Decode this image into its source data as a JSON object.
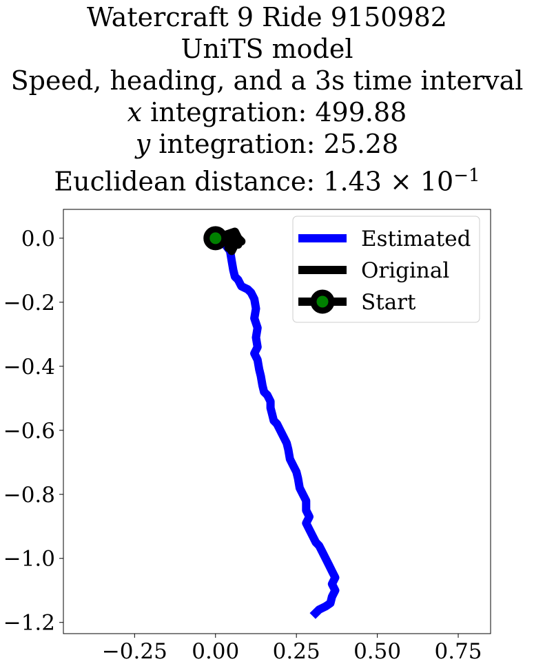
{
  "chart_data": {
    "type": "line",
    "title_lines": {
      "line1": "Watercraft 9 Ride 9150982",
      "line2": "UniTS model",
      "line3": "Speed, heading, and a 3s time interval",
      "line4_var": "x",
      "line4_rest": " integration: 499.88",
      "line5_var": "y",
      "line5_rest": " integration: 25.28",
      "line6_text": "Euclidean distance: 1.43 × 10",
      "line6_exp": "−1"
    },
    "xlim": [
      -0.47,
      0.85
    ],
    "ylim": [
      -1.235,
      0.09
    ],
    "xticks": [
      -0.25,
      0.0,
      0.25,
      0.5,
      0.75
    ],
    "xtick_labels": [
      "−0.25",
      "0.00",
      "0.25",
      "0.50",
      "0.75"
    ],
    "yticks": [
      0.0,
      -0.2,
      -0.4,
      -0.6,
      -0.8,
      -1.0,
      -1.2
    ],
    "ytick_labels": [
      "0.0",
      "−0.2",
      "−0.4",
      "−0.6",
      "−0.8",
      "−1.0",
      "−1.2"
    ],
    "grid": false,
    "legend_position": "top-right",
    "series": [
      {
        "name": "Estimated",
        "color": "#0000ff",
        "x": [
          0.0,
          0.03,
          0.045,
          0.05,
          0.055,
          0.06,
          0.07,
          0.08,
          0.1,
          0.11,
          0.12,
          0.125,
          0.12,
          0.13,
          0.125,
          0.13,
          0.12,
          0.13,
          0.135,
          0.14,
          0.145,
          0.15,
          0.16,
          0.17,
          0.17,
          0.175,
          0.18,
          0.19,
          0.2,
          0.21,
          0.22,
          0.225,
          0.23,
          0.24,
          0.25,
          0.255,
          0.26,
          0.27,
          0.28,
          0.28,
          0.29,
          0.28,
          0.29,
          0.3,
          0.31,
          0.32,
          0.33,
          0.34,
          0.35,
          0.36,
          0.37,
          0.36,
          0.37,
          0.36,
          0.355,
          0.34,
          0.32,
          0.3
        ],
        "y": [
          0.0,
          -0.02,
          -0.04,
          -0.07,
          -0.1,
          -0.12,
          -0.13,
          -0.15,
          -0.16,
          -0.17,
          -0.19,
          -0.22,
          -0.25,
          -0.28,
          -0.31,
          -0.34,
          -0.36,
          -0.38,
          -0.41,
          -0.43,
          -0.46,
          -0.48,
          -0.49,
          -0.51,
          -0.53,
          -0.55,
          -0.57,
          -0.58,
          -0.6,
          -0.62,
          -0.64,
          -0.66,
          -0.69,
          -0.71,
          -0.73,
          -0.75,
          -0.78,
          -0.8,
          -0.82,
          -0.85,
          -0.87,
          -0.89,
          -0.91,
          -0.93,
          -0.95,
          -0.96,
          -0.98,
          -1.0,
          -1.02,
          -1.04,
          -1.06,
          -1.08,
          -1.1,
          -1.12,
          -1.14,
          -1.15,
          -1.16,
          -1.18
        ]
      },
      {
        "name": "Original",
        "color": "#000000",
        "x": [
          0.0,
          0.03,
          0.06,
          0.07,
          0.06,
          0.04,
          0.05,
          0.07,
          0.08,
          0.06,
          0.05,
          0.04,
          0.06,
          0.05,
          0.04,
          0.07,
          0.06,
          0.05
        ],
        "y": [
          0.0,
          0.01,
          0.02,
          0.0,
          -0.02,
          -0.03,
          -0.01,
          0.0,
          -0.01,
          -0.02,
          -0.04,
          -0.02,
          0.01,
          -0.03,
          -0.01,
          -0.02,
          0.02,
          -0.04
        ]
      }
    ],
    "start": {
      "name": "Start",
      "x": 0.0,
      "y": 0.0,
      "edge_color": "#000000",
      "face_color": "#008000"
    },
    "legend_entries": [
      "Estimated",
      "Original",
      "Start"
    ]
  }
}
